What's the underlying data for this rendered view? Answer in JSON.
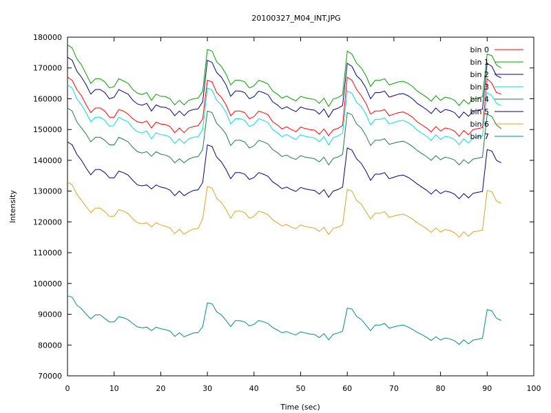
{
  "chart_data": {
    "type": "line",
    "title": "20100327_M04_INT.JPG",
    "xlabel": "Time (sec)",
    "ylabel": "Intensity",
    "xlim": [
      0,
      100
    ],
    "ylim": [
      70000,
      180000
    ],
    "xticks": [
      "0",
      "10",
      "20",
      "30",
      "40",
      "50",
      "60",
      "70",
      "80",
      "90",
      "100"
    ],
    "yticks": [
      "70000",
      "80000",
      "90000",
      "100000",
      "110000",
      "120000",
      "130000",
      "140000",
      "150000",
      "160000",
      "170000",
      "180000"
    ],
    "grid": false,
    "legend_position": "top-right",
    "x": [
      0,
      1,
      2,
      3,
      4,
      5,
      6,
      7,
      8,
      9,
      10,
      11,
      12,
      13,
      14,
      15,
      16,
      17,
      18,
      19,
      20,
      21,
      22,
      23,
      24,
      25,
      26,
      27,
      28,
      29,
      30,
      31,
      32,
      33,
      34,
      35,
      36,
      37,
      38,
      39,
      40,
      41,
      42,
      43,
      44,
      45,
      46,
      47,
      48,
      49,
      50,
      51,
      52,
      53,
      54,
      55,
      56,
      57,
      58,
      59,
      60,
      61,
      62,
      63,
      64,
      65,
      66,
      67,
      68,
      69,
      70,
      71,
      72,
      73,
      74,
      75,
      76,
      77,
      78,
      79,
      80,
      81,
      82,
      83,
      84,
      85,
      86,
      87,
      88,
      89,
      90,
      91,
      92,
      93
    ],
    "series": [
      {
        "name": "bin 0",
        "color": "#ff0000",
        "values": [
          167000,
          166000,
          163000,
          161000,
          158000,
          155500,
          157000,
          157000,
          156000,
          154000,
          154000,
          156500,
          156000,
          155000,
          153500,
          152500,
          152200,
          152800,
          150500,
          152400,
          151800,
          151600,
          151000,
          149000,
          150500,
          149000,
          150500,
          151000,
          151200,
          153500,
          166000,
          165500,
          162000,
          160500,
          158000,
          154500,
          156000,
          156000,
          155500,
          153500,
          154200,
          156000,
          155500,
          154800,
          152500,
          151500,
          150200,
          150900,
          150000,
          149300,
          150800,
          150300,
          150000,
          149800,
          148500,
          150200,
          148000,
          149900,
          150400,
          151300,
          167000,
          166000,
          163000,
          161000,
          158500,
          155000,
          156000,
          156000,
          156500,
          154500,
          155000,
          155500,
          155700,
          155000,
          154000,
          152500,
          151500,
          150500,
          149200,
          151000,
          149500,
          150500,
          150200,
          149500,
          147800,
          149700,
          148300,
          150000,
          150300,
          150600,
          166500,
          165000,
          162000,
          161500
        ]
      },
      {
        "name": "bin 1",
        "color": "#00a000",
        "values": [
          177500,
          176500,
          173000,
          171000,
          168000,
          165000,
          166500,
          166500,
          165500,
          163500,
          164000,
          166500,
          165800,
          165000,
          163000,
          161800,
          161400,
          162000,
          159500,
          161500,
          160800,
          160700,
          160000,
          158000,
          159500,
          158000,
          159500,
          160000,
          160200,
          162500,
          176000,
          175500,
          172000,
          170500,
          168000,
          164500,
          166000,
          166000,
          165500,
          163500,
          164200,
          166000,
          165500,
          164800,
          162500,
          161500,
          160200,
          160900,
          160000,
          159300,
          160800,
          160300,
          160000,
          159800,
          158500,
          160200,
          157500,
          159900,
          160400,
          161300,
          175500,
          174500,
          171500,
          170000,
          167500,
          164000,
          166000,
          166000,
          166500,
          164500,
          165000,
          165500,
          165700,
          165000,
          164000,
          162500,
          161500,
          160500,
          159200,
          161000,
          159500,
          160500,
          160200,
          159500,
          157800,
          159700,
          158300,
          160000,
          160300,
          160600,
          174500,
          174000,
          171000,
          170000
        ]
      },
      {
        "name": "bin 2",
        "color": "#00008b",
        "values": [
          173500,
          172500,
          169000,
          167000,
          164500,
          161500,
          163000,
          163000,
          162000,
          160000,
          160500,
          163000,
          162200,
          161500,
          159500,
          158300,
          157900,
          158500,
          156000,
          158000,
          157300,
          157200,
          156500,
          154500,
          156000,
          154500,
          156000,
          156500,
          156700,
          159000,
          172500,
          171800,
          168500,
          167000,
          164500,
          160800,
          162500,
          162500,
          162000,
          160000,
          160700,
          162500,
          162000,
          161300,
          159000,
          158000,
          156700,
          157400,
          156500,
          155800,
          157300,
          156800,
          156500,
          156300,
          155000,
          156700,
          154000,
          156400,
          156900,
          157800,
          171500,
          170500,
          167500,
          166000,
          163500,
          160000,
          162000,
          162000,
          162500,
          160500,
          161000,
          161500,
          161700,
          161000,
          160000,
          158500,
          157500,
          156500,
          155200,
          157000,
          155500,
          156500,
          156200,
          155500,
          153800,
          155700,
          154300,
          156000,
          156300,
          156600,
          171500,
          170500,
          167500,
          166800
        ]
      },
      {
        "name": "bin 3",
        "color": "#00e0e0",
        "values": [
          164500,
          163500,
          160000,
          158000,
          155500,
          152500,
          154000,
          154000,
          153000,
          151000,
          151500,
          154000,
          153200,
          152500,
          150500,
          149300,
          148900,
          149500,
          147000,
          149000,
          148300,
          148200,
          147500,
          145500,
          147000,
          145500,
          147000,
          147500,
          147700,
          150000,
          163500,
          162800,
          159500,
          158000,
          155500,
          151800,
          153500,
          153500,
          153000,
          151000,
          151700,
          153500,
          153000,
          152300,
          150000,
          149000,
          147700,
          148400,
          147500,
          146800,
          148300,
          147800,
          147500,
          147300,
          146000,
          147700,
          145000,
          147400,
          147900,
          148800,
          162500,
          161800,
          158800,
          157500,
          155000,
          151500,
          153300,
          153300,
          153800,
          151800,
          152300,
          152800,
          153000,
          152300,
          151300,
          149800,
          148800,
          147800,
          146500,
          148300,
          146800,
          147800,
          147500,
          146800,
          145100,
          147000,
          145600,
          147300,
          147600,
          147900,
          162000,
          161000,
          158500,
          157800
        ]
      },
      {
        "name": "bin 4",
        "color": "#1f7a4a",
        "values": [
          157000,
          156000,
          152500,
          150500,
          148500,
          146000,
          147500,
          147500,
          146500,
          145000,
          145000,
          147500,
          146800,
          146000,
          144200,
          142800,
          142400,
          142800,
          141300,
          142800,
          142000,
          141700,
          141000,
          139200,
          140500,
          139200,
          140400,
          141000,
          141200,
          143500,
          156000,
          155500,
          152000,
          150500,
          148500,
          144800,
          146500,
          146500,
          146000,
          144000,
          144700,
          146500,
          146000,
          145300,
          143500,
          142500,
          141200,
          141700,
          140800,
          140300,
          141500,
          141000,
          140800,
          140500,
          139500,
          141000,
          138500,
          140600,
          141100,
          141900,
          155500,
          154800,
          151800,
          150500,
          148000,
          144800,
          146500,
          146500,
          147000,
          145200,
          145600,
          146000,
          146200,
          145500,
          144500,
          143200,
          142200,
          141200,
          140000,
          141500,
          140200,
          141000,
          140700,
          140100,
          138500,
          140200,
          139000,
          140400,
          140700,
          141000,
          155000,
          154200,
          151500,
          150300
        ]
      },
      {
        "name": "bin 5",
        "color": "#000080",
        "values": [
          146000,
          145000,
          142000,
          140000,
          137500,
          135300,
          137000,
          137000,
          136000,
          134300,
          134300,
          136500,
          136000,
          135200,
          133500,
          132000,
          131700,
          132000,
          130700,
          132000,
          131300,
          131000,
          130300,
          128500,
          130000,
          128500,
          129500,
          130200,
          130400,
          132800,
          145000,
          144500,
          141000,
          139500,
          137000,
          134000,
          136000,
          136000,
          135500,
          133800,
          134400,
          136000,
          135500,
          134800,
          133000,
          132000,
          130800,
          131300,
          130500,
          129900,
          131200,
          130700,
          130400,
          130200,
          129000,
          130500,
          128000,
          130000,
          130500,
          131300,
          144000,
          143300,
          140500,
          139000,
          136500,
          133500,
          135500,
          135500,
          136000,
          134000,
          134500,
          135000,
          135200,
          134500,
          133500,
          132300,
          131300,
          130300,
          129000,
          130500,
          129200,
          130000,
          129700,
          129000,
          127500,
          129200,
          127800,
          129300,
          129600,
          129900,
          143500,
          143000,
          140000,
          139200
        ]
      },
      {
        "name": "bin 6",
        "color": "#daa520",
        "values": [
          133000,
          132000,
          129000,
          127000,
          125000,
          123000,
          124500,
          124500,
          123300,
          121800,
          121800,
          124000,
          123500,
          122700,
          121000,
          119700,
          119400,
          119700,
          118400,
          119700,
          119000,
          118600,
          118000,
          116200,
          117600,
          116000,
          117000,
          117700,
          117900,
          121000,
          131500,
          131000,
          127700,
          126300,
          124000,
          121200,
          123500,
          123500,
          123000,
          121200,
          121800,
          123500,
          123000,
          122300,
          120700,
          119700,
          118700,
          119200,
          118300,
          117800,
          119000,
          118500,
          118200,
          118000,
          116900,
          118300,
          115900,
          117900,
          118300,
          119000,
          130500,
          130000,
          127000,
          125800,
          123300,
          121000,
          122800,
          122800,
          123300,
          121500,
          121900,
          122300,
          122500,
          121800,
          120900,
          119700,
          118800,
          117800,
          116600,
          118000,
          116700,
          117500,
          117200,
          116500,
          115000,
          116800,
          115300,
          116800,
          117000,
          117300,
          130200,
          129800,
          126800,
          126000
        ]
      },
      {
        "name": "bin 7",
        "color": "#008b8b",
        "values": [
          96000,
          95500,
          93000,
          91800,
          90000,
          88500,
          89800,
          89800,
          88600,
          87500,
          87500,
          89200,
          88900,
          88200,
          87000,
          85900,
          85600,
          85800,
          84700,
          85800,
          85300,
          85000,
          84500,
          82800,
          84000,
          82700,
          83300,
          83900,
          84000,
          86000,
          93700,
          93400,
          90800,
          89800,
          88000,
          86000,
          87900,
          87900,
          87500,
          86200,
          86700,
          88000,
          87600,
          87000,
          85700,
          84900,
          84000,
          84400,
          83700,
          83300,
          84300,
          83900,
          83600,
          83400,
          82400,
          83700,
          81700,
          83500,
          83900,
          84500,
          92000,
          91700,
          89300,
          88300,
          86500,
          84700,
          86500,
          86500,
          87000,
          85500,
          85900,
          86300,
          86500,
          85900,
          85100,
          84100,
          83400,
          82500,
          81500,
          82700,
          81600,
          82300,
          82000,
          81400,
          80200,
          81700,
          80400,
          81600,
          81900,
          82200,
          91500,
          91100,
          88700,
          88000
        ]
      }
    ]
  }
}
